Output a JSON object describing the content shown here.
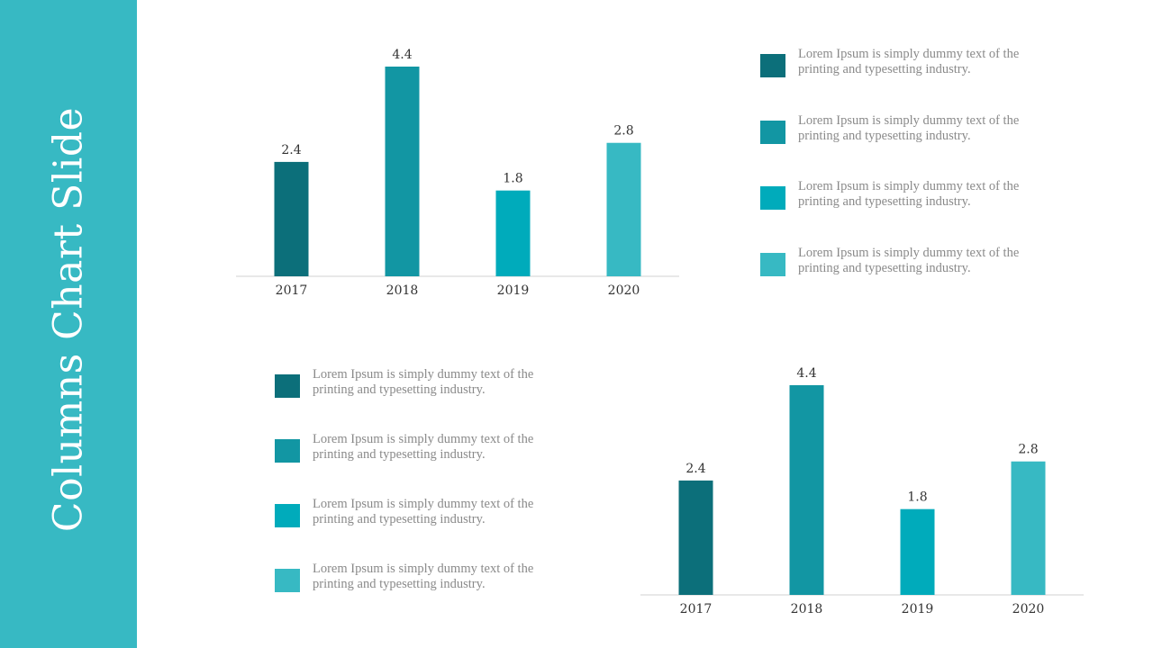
{
  "slide": {
    "title": "Columns Chart Slide"
  },
  "colors": {
    "sidebar": "#37b9c3",
    "series": [
      "#0c6f7a",
      "#1296a3",
      "#00abbb",
      "#37b9c3"
    ],
    "axis": "#d0d0d0",
    "label_text": "#333333",
    "legend_text": "#8a8a8a"
  },
  "chart_data": [
    {
      "type": "bar",
      "categories": [
        "2017",
        "2018",
        "2019",
        "2020"
      ],
      "values": [
        2.4,
        4.4,
        1.8,
        2.8
      ],
      "data_labels": [
        "2.4",
        "4.4",
        "1.8",
        "2.8"
      ],
      "title": "",
      "xlabel": "",
      "ylabel": "",
      "ylim": [
        0,
        4.4
      ],
      "grid": false,
      "legend": "right"
    },
    {
      "type": "bar",
      "categories": [
        "2017",
        "2018",
        "2019",
        "2020"
      ],
      "values": [
        2.4,
        4.4,
        1.8,
        2.8
      ],
      "data_labels": [
        "2.4",
        "4.4",
        "1.8",
        "2.8"
      ],
      "title": "",
      "xlabel": "",
      "ylabel": "",
      "ylim": [
        0,
        4.4
      ],
      "grid": false,
      "legend": "left"
    }
  ],
  "legend_top": [
    "Lorem Ipsum is simply dummy text of the printing and typesetting industry.",
    "Lorem Ipsum is simply dummy text of the printing and typesetting industry.",
    "Lorem Ipsum is simply dummy text of the printing and typesetting industry.",
    "Lorem Ipsum is simply dummy text of the printing and typesetting industry."
  ],
  "legend_bottom": [
    "Lorem Ipsum is simply dummy text of the printing and typesetting industry.",
    "Lorem Ipsum is simply dummy text of the printing and typesetting industry.",
    "Lorem Ipsum is simply dummy text of the printing and typesetting industry.",
    "Lorem Ipsum is simply dummy text of the printing and typesetting industry."
  ]
}
